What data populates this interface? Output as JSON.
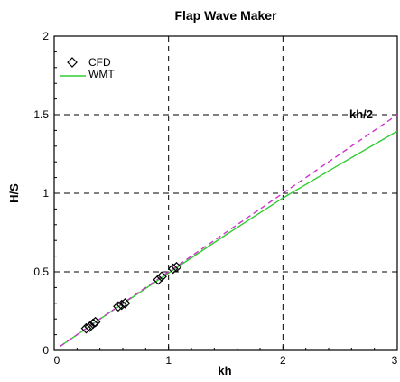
{
  "chart_data": {
    "type": "line",
    "title": "Flap Wave Maker",
    "xlabel": "kh",
    "ylabel": "H/S",
    "xlim": [
      0,
      3
    ],
    "ylim": [
      0,
      2
    ],
    "xticks": [
      "0",
      "1",
      "2",
      "3"
    ],
    "yticks": [
      "0",
      "0.5",
      "1",
      "1.5",
      "2"
    ],
    "grid": "dashed",
    "legend_position": "top-left",
    "annotation": "kh/2",
    "series": [
      {
        "name": "CFD",
        "kind": "scatter",
        "marker": "hollow-diamond",
        "color": "#000000",
        "x": [
          0.28,
          0.31,
          0.34,
          0.36,
          0.56,
          0.59,
          0.62,
          0.91,
          0.94,
          1.04,
          1.07
        ],
        "y": [
          0.14,
          0.15,
          0.17,
          0.18,
          0.28,
          0.29,
          0.3,
          0.45,
          0.47,
          0.52,
          0.53
        ]
      },
      {
        "name": "WMT",
        "kind": "line",
        "color": "#33cc33",
        "x": [
          0.05,
          0.5,
          1.0,
          1.5,
          2.0,
          2.5,
          3.0
        ],
        "y": [
          0.025,
          0.248,
          0.492,
          0.735,
          0.97,
          1.185,
          1.395
        ]
      },
      {
        "name": "kh/2",
        "kind": "line",
        "style": "dashed",
        "color": "#cc33cc",
        "x": [
          0.05,
          3.0
        ],
        "y": [
          0.025,
          1.5
        ]
      }
    ]
  }
}
